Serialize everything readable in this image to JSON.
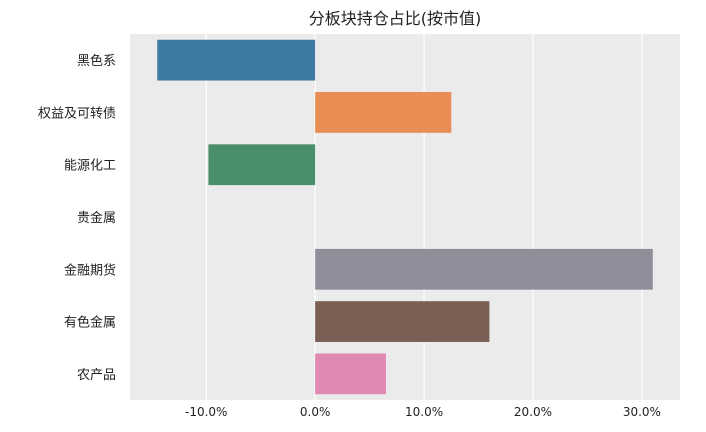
{
  "chart_data": {
    "type": "bar",
    "orientation": "horizontal",
    "title": "分板块持仓占比(按市值)",
    "xlabel": "",
    "ylabel": "",
    "categories": [
      "黑色系",
      "权益及可转债",
      "能源化工",
      "贵金属",
      "金融期货",
      "有色金属",
      "农产品"
    ],
    "values": [
      -14.5,
      12.5,
      -9.8,
      0.0,
      31.0,
      16.0,
      6.5
    ],
    "colors": [
      "#3f7aa2",
      "#e88d54",
      "#4a8f6a",
      "#c95b5b",
      "#8f8f9b",
      "#7a5f55",
      "#e08ab3"
    ],
    "xlim": [
      -17.0,
      33.5
    ],
    "xticks": [
      -10,
      0,
      10,
      20,
      30
    ],
    "xtick_labels": [
      "-10.0%",
      "0.0%",
      "10.0%",
      "20.0%",
      "30.0%"
    ],
    "grid": true,
    "legend": "none",
    "plot_background": "#ebebeb"
  }
}
